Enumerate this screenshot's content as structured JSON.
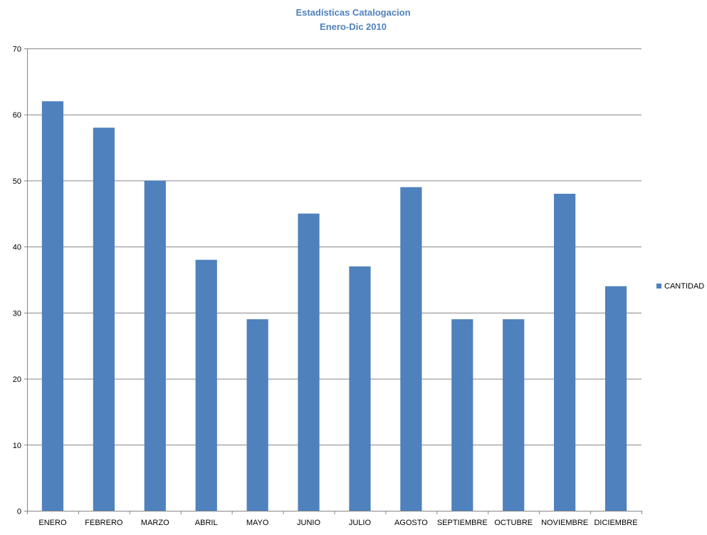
{
  "colors": {
    "bar": "#4f81bd",
    "title": "#4f81bd",
    "grid": "#868686",
    "axis": "#868686",
    "background": "#ffffff"
  },
  "chart_data": {
    "type": "bar",
    "title": "Estadísticas Catalogacion",
    "subtitle": "Enero-Dic 2010",
    "xlabel": "",
    "ylabel": "",
    "categories": [
      "ENERO",
      "FEBRERO",
      "MARZO",
      "ABRIL",
      "MAYO",
      "JUNIO",
      "JULIO",
      "AGOSTO",
      "SEPTIEMBRE",
      "OCTUBRE",
      "NOVIEMBRE",
      "DICIEMBRE"
    ],
    "series": [
      {
        "name": "CANTIDAD",
        "values": [
          62,
          58,
          50,
          38,
          29,
          45,
          37,
          49,
          29,
          29,
          48,
          34
        ]
      }
    ],
    "ylim": [
      0,
      70
    ],
    "yticks": [
      0,
      10,
      20,
      30,
      40,
      50,
      60,
      70
    ],
    "grid": true,
    "legend_position": "right"
  }
}
